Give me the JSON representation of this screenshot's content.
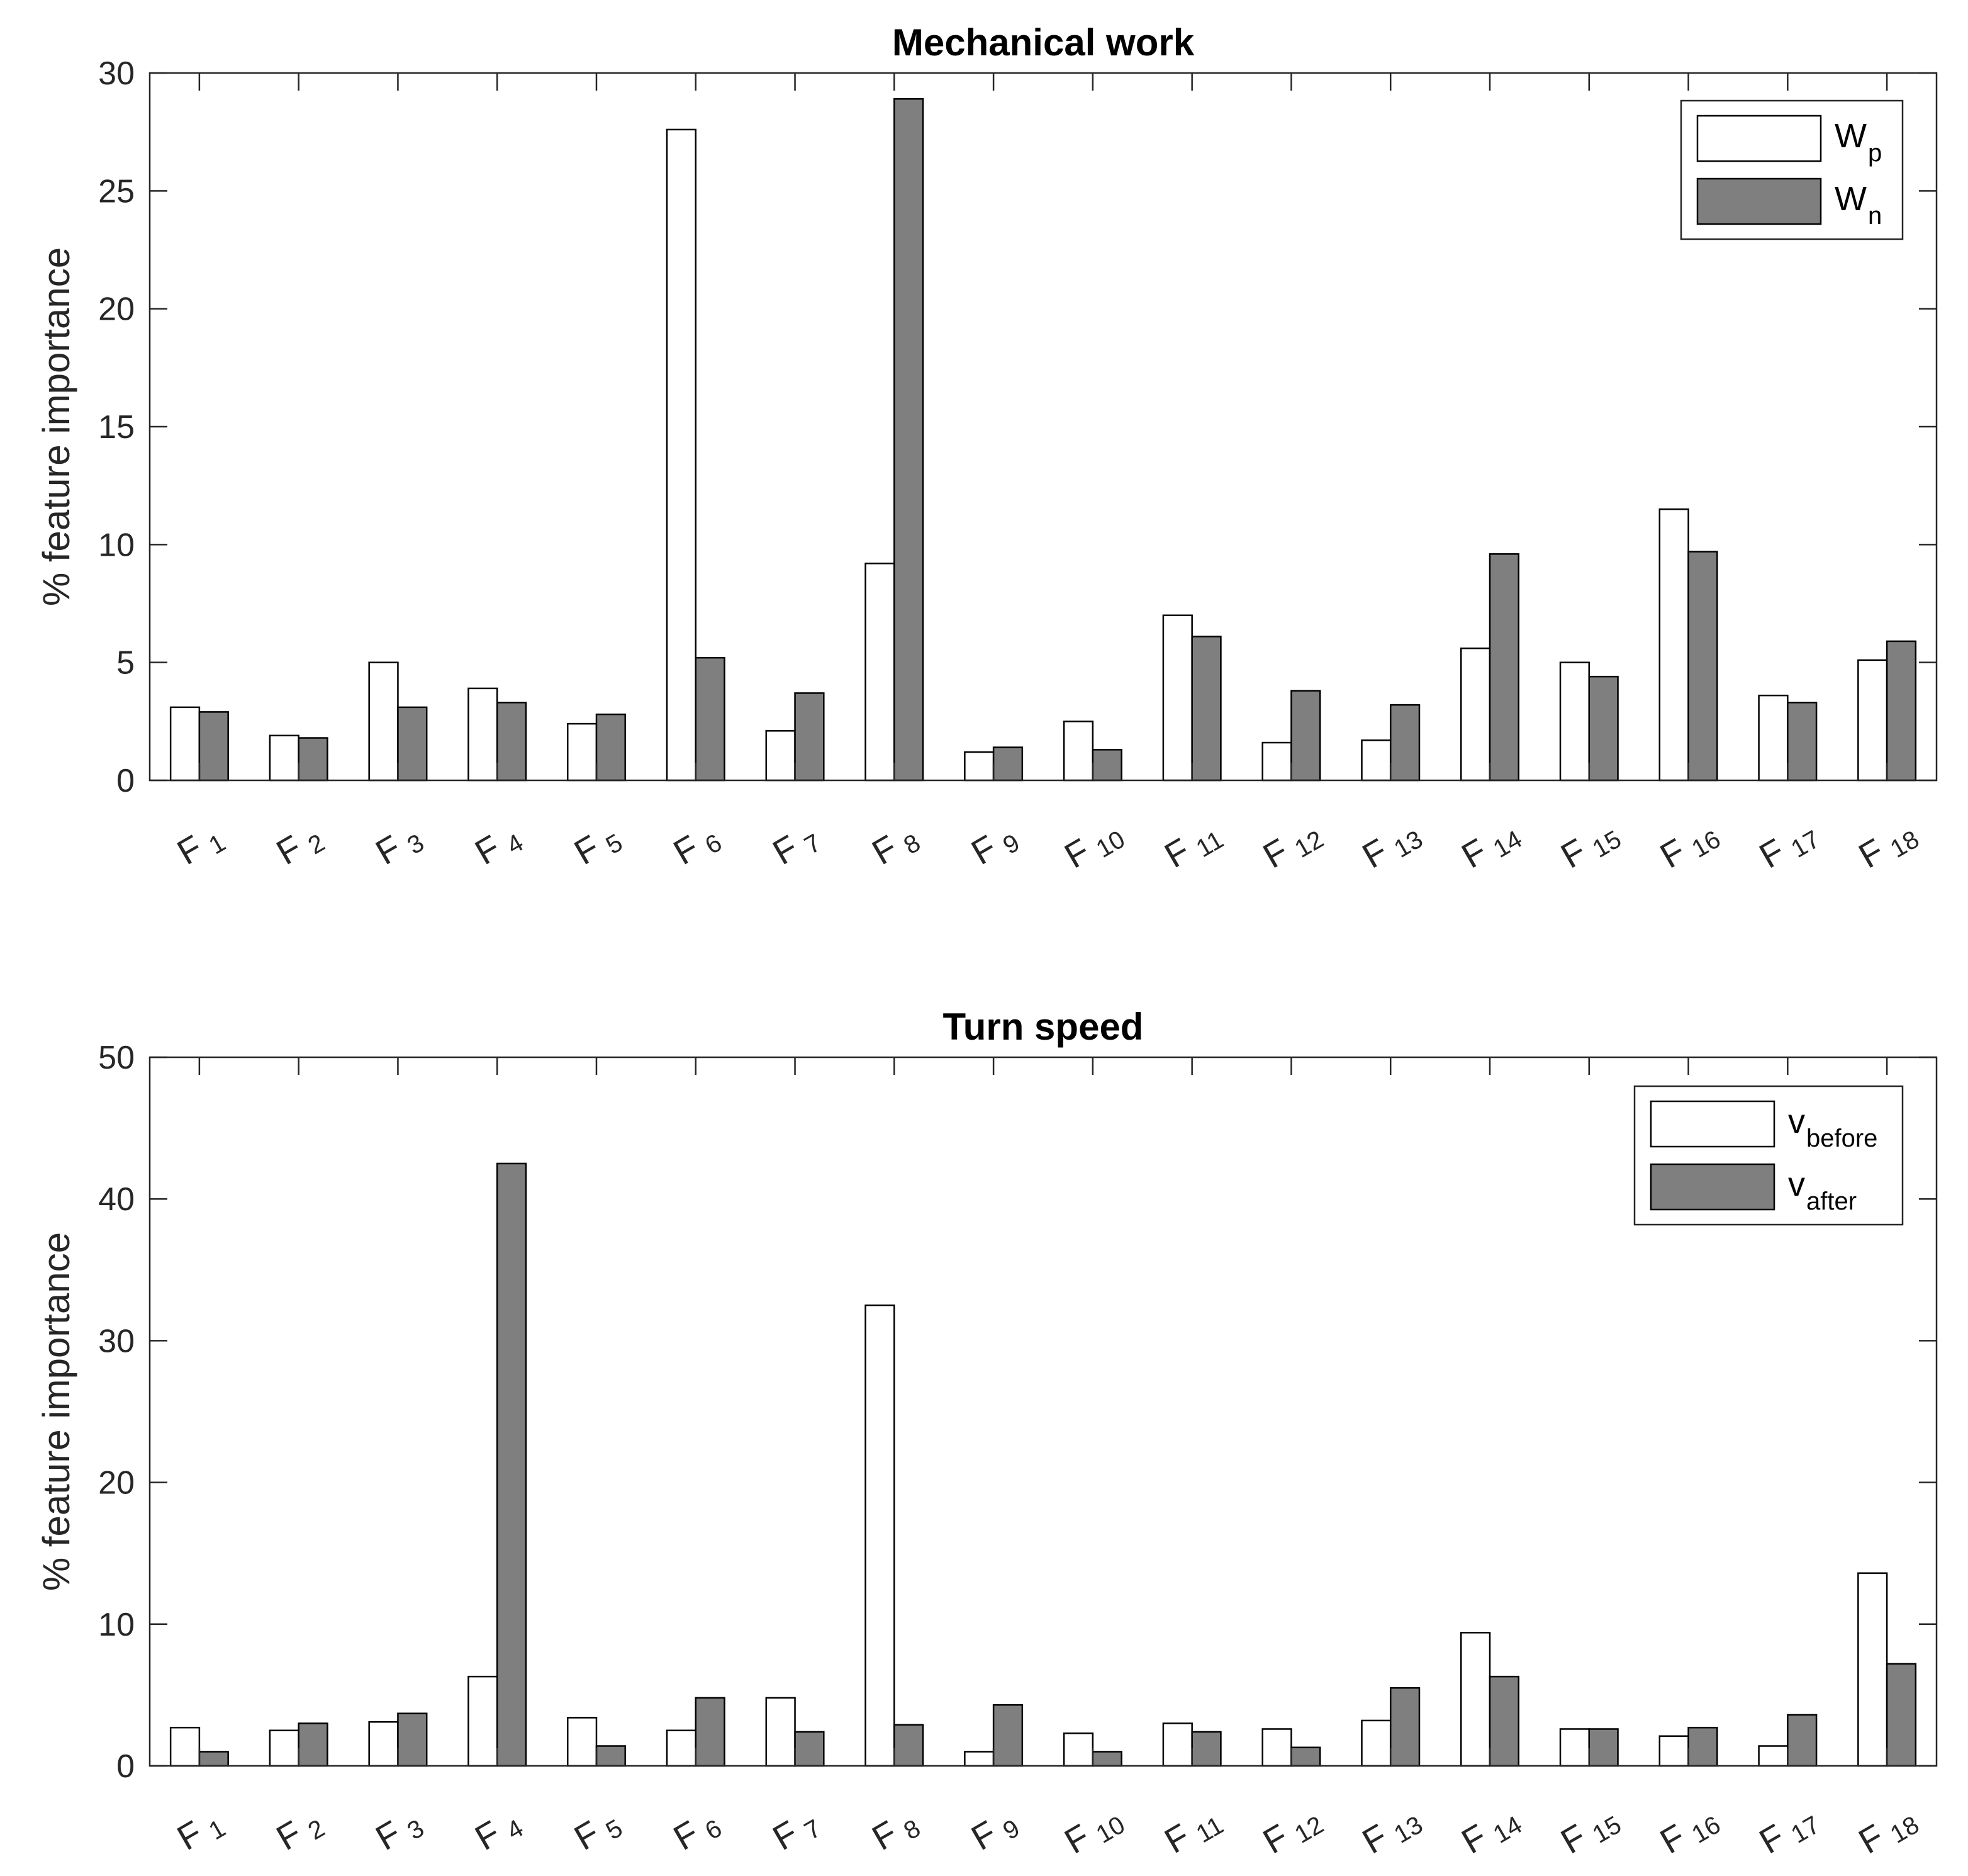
{
  "chart_data": [
    {
      "type": "bar",
      "title": "Mechanical work",
      "ylabel": "% feature importance",
      "xlabel": "",
      "ylim": [
        0,
        30
      ],
      "yticks": [
        0,
        5,
        10,
        15,
        20,
        25,
        30
      ],
      "categories": [
        {
          "base": "F",
          "sub": "1"
        },
        {
          "base": "F",
          "sub": "2"
        },
        {
          "base": "F",
          "sub": "3"
        },
        {
          "base": "F",
          "sub": "4"
        },
        {
          "base": "F",
          "sub": "5"
        },
        {
          "base": "F",
          "sub": "6"
        },
        {
          "base": "F",
          "sub": "7"
        },
        {
          "base": "F",
          "sub": "8"
        },
        {
          "base": "F",
          "sub": "9"
        },
        {
          "base": "F",
          "sub": "10"
        },
        {
          "base": "F",
          "sub": "11"
        },
        {
          "base": "F",
          "sub": "12"
        },
        {
          "base": "F",
          "sub": "13"
        },
        {
          "base": "F",
          "sub": "14"
        },
        {
          "base": "F",
          "sub": "15"
        },
        {
          "base": "F",
          "sub": "16"
        },
        {
          "base": "F",
          "sub": "17"
        },
        {
          "base": "F",
          "sub": "18"
        }
      ],
      "series": [
        {
          "name": "W_p",
          "label_base": "W",
          "label_sub": "p",
          "color": "#ffffff",
          "values": [
            3.1,
            1.9,
            5.0,
            3.9,
            2.4,
            27.6,
            2.1,
            9.2,
            1.2,
            2.5,
            7.0,
            1.6,
            1.7,
            5.6,
            5.0,
            11.5,
            3.6,
            5.1
          ]
        },
        {
          "name": "W_n",
          "label_base": "W",
          "label_sub": "n",
          "color": "#7f7f7f",
          "values": [
            2.9,
            1.8,
            3.1,
            3.3,
            2.8,
            5.2,
            3.7,
            28.9,
            1.4,
            1.3,
            6.1,
            3.8,
            3.2,
            9.6,
            4.4,
            9.7,
            3.3,
            5.9
          ]
        }
      ],
      "legend_position": "top-right",
      "grid": false
    },
    {
      "type": "bar",
      "title": "Turn speed",
      "ylabel": "% feature importance",
      "xlabel": "",
      "ylim": [
        0,
        50
      ],
      "yticks": [
        0,
        10,
        20,
        30,
        40,
        50
      ],
      "categories": [
        {
          "base": "F",
          "sub": "1"
        },
        {
          "base": "F",
          "sub": "2"
        },
        {
          "base": "F",
          "sub": "3"
        },
        {
          "base": "F",
          "sub": "4"
        },
        {
          "base": "F",
          "sub": "5"
        },
        {
          "base": "F",
          "sub": "6"
        },
        {
          "base": "F",
          "sub": "7"
        },
        {
          "base": "F",
          "sub": "8"
        },
        {
          "base": "F",
          "sub": "9"
        },
        {
          "base": "F",
          "sub": "10"
        },
        {
          "base": "F",
          "sub": "11"
        },
        {
          "base": "F",
          "sub": "12"
        },
        {
          "base": "F",
          "sub": "13"
        },
        {
          "base": "F",
          "sub": "14"
        },
        {
          "base": "F",
          "sub": "15"
        },
        {
          "base": "F",
          "sub": "16"
        },
        {
          "base": "F",
          "sub": "17"
        },
        {
          "base": "F",
          "sub": "18"
        }
      ],
      "series": [
        {
          "name": "v_before",
          "label_base": "v",
          "label_sub": "before",
          "color": "#ffffff",
          "values": [
            2.7,
            2.5,
            3.1,
            6.3,
            3.4,
            2.5,
            4.8,
            32.5,
            1.0,
            2.3,
            3.0,
            2.6,
            3.2,
            9.4,
            2.6,
            2.1,
            1.4,
            13.6
          ]
        },
        {
          "name": "v_after",
          "label_base": "v",
          "label_sub": "after",
          "color": "#7f7f7f",
          "values": [
            1.0,
            3.0,
            3.7,
            42.5,
            1.4,
            4.8,
            2.4,
            2.9,
            4.3,
            1.0,
            2.4,
            1.3,
            5.5,
            6.3,
            2.6,
            2.7,
            3.6,
            7.2
          ]
        }
      ],
      "legend_position": "top-right",
      "grid": false
    }
  ]
}
